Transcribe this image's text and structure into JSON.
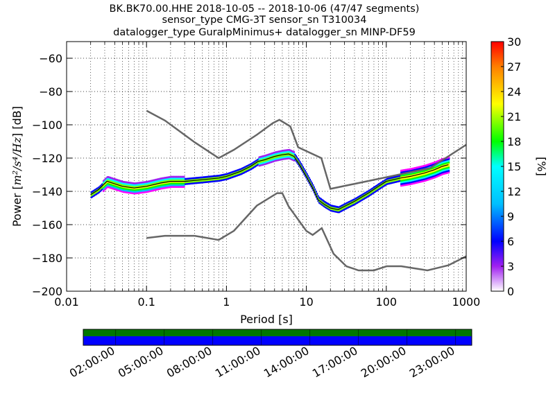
{
  "title_lines": [
    "BK.BK70.00.HHE   2018-10-05 -- 2018-10-06  (47/47 segments)",
    "sensor_type CMG-3T sensor_sn T310034",
    "datalogger_type GuralpMinimus+ datalogger_sn MINP-DF59"
  ],
  "chart_data": {
    "type": "heatmap",
    "x_scale": "log",
    "xlim": [
      0.01,
      1000
    ],
    "ylim": [
      -200,
      -50
    ],
    "xlabel": "Period [s]",
    "ylabel_prefix": "Power [",
    "ylabel_units": "m²/s⁴/Hz",
    "ylabel_suffix": "] [dB]",
    "x_ticks": [
      {
        "v": 0.01,
        "label": "0.01"
      },
      {
        "v": 0.1,
        "label": "0.1"
      },
      {
        "v": 1,
        "label": "1"
      },
      {
        "v": 10,
        "label": "10"
      },
      {
        "v": 100,
        "label": "100"
      },
      {
        "v": 1000,
        "label": "1000"
      }
    ],
    "y_ticks": [
      {
        "v": -60,
        "label": "−60"
      },
      {
        "v": -80,
        "label": "−80"
      },
      {
        "v": -100,
        "label": "−100"
      },
      {
        "v": -120,
        "label": "−120"
      },
      {
        "v": -140,
        "label": "−140"
      },
      {
        "v": -160,
        "label": "−160"
      },
      {
        "v": -180,
        "label": "−180"
      },
      {
        "v": -200,
        "label": "−200"
      }
    ],
    "grid": "dotted",
    "ppsd_path": [
      [
        0.02,
        -142
      ],
      [
        0.025,
        -139
      ],
      [
        0.032,
        -134
      ],
      [
        0.05,
        -137
      ],
      [
        0.07,
        -138
      ],
      [
        0.1,
        -137
      ],
      [
        0.15,
        -135
      ],
      [
        0.2,
        -134
      ],
      [
        0.3,
        -134
      ],
      [
        0.5,
        -133
      ],
      [
        0.8,
        -132
      ],
      [
        1,
        -131
      ],
      [
        1.5,
        -128
      ],
      [
        2,
        -125
      ],
      [
        2.5,
        -122
      ],
      [
        3,
        -121
      ],
      [
        4,
        -119
      ],
      [
        5,
        -118
      ],
      [
        6,
        -117.5
      ],
      [
        7,
        -119
      ],
      [
        8,
        -123
      ],
      [
        10,
        -131
      ],
      [
        12,
        -138
      ],
      [
        14,
        -145
      ],
      [
        17,
        -148
      ],
      [
        20,
        -150
      ],
      [
        25,
        -151
      ],
      [
        30,
        -149
      ],
      [
        40,
        -146
      ],
      [
        60,
        -141
      ],
      [
        80,
        -137
      ],
      [
        100,
        -134
      ],
      [
        150,
        -132
      ],
      [
        200,
        -131
      ],
      [
        300,
        -129
      ],
      [
        400,
        -127
      ],
      [
        500,
        -125
      ],
      [
        600,
        -124
      ]
    ],
    "nhnm": [
      [
        0.1,
        -91.5
      ],
      [
        0.17,
        -97.4
      ],
      [
        0.4,
        -110.5
      ],
      [
        0.8,
        -120
      ],
      [
        1.24,
        -115
      ],
      [
        2.4,
        -106
      ],
      [
        3.8,
        -99
      ],
      [
        4.6,
        -97
      ],
      [
        6.3,
        -101
      ],
      [
        7.9,
        -113.5
      ],
      [
        15.4,
        -120
      ],
      [
        20,
        -138.5
      ],
      [
        354.8,
        -126
      ],
      [
        1000,
        -112
      ]
    ],
    "nlnm": [
      [
        0.1,
        -168
      ],
      [
        0.17,
        -166.7
      ],
      [
        0.4,
        -166.7
      ],
      [
        0.8,
        -169.2
      ],
      [
        1.24,
        -163.7
      ],
      [
        2.4,
        -148.6
      ],
      [
        4.3,
        -141.1
      ],
      [
        5,
        -141.1
      ],
      [
        6,
        -149
      ],
      [
        10,
        -163.8
      ],
      [
        12,
        -166.2
      ],
      [
        15.6,
        -162.1
      ],
      [
        21.9,
        -177.5
      ],
      [
        31.6,
        -185
      ],
      [
        45,
        -187.5
      ],
      [
        70,
        -187.5
      ],
      [
        101,
        -185
      ],
      [
        154,
        -185
      ],
      [
        328,
        -187.5
      ],
      [
        600,
        -184.4
      ],
      [
        1000,
        -179
      ]
    ],
    "colorbar": {
      "label": "[%]",
      "range": [
        0,
        30
      ],
      "ticks": [
        "0",
        "3",
        "6",
        "9",
        "12",
        "15",
        "18",
        "21",
        "24",
        "27",
        "30"
      ]
    },
    "coverage": {
      "bar_colors": [
        "#007700",
        "#0000ff"
      ],
      "time_labels": [
        "02:00:00",
        "05:00:00",
        "08:00:00",
        "11:00:00",
        "14:00:00",
        "17:00:00",
        "20:00:00",
        "23:00:00"
      ]
    }
  }
}
